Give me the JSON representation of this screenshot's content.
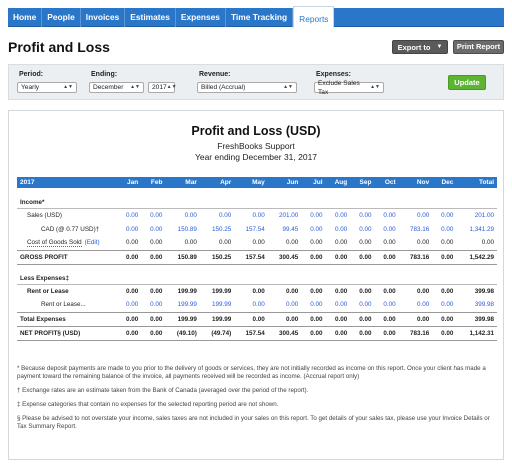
{
  "nav": {
    "tabs": [
      "Home",
      "People",
      "Invoices",
      "Estimates",
      "Expenses",
      "Time Tracking",
      "Reports"
    ],
    "active": "Reports"
  },
  "header": {
    "title": "Profit and Loss",
    "export_label": "Export to",
    "print_label": "Print Report"
  },
  "filters": {
    "period_label": "Period:",
    "period_value": "Yearly",
    "ending_label": "Ending:",
    "ending_month": "December",
    "ending_year": "2017",
    "revenue_label": "Revenue:",
    "revenue_value": "Billed (Accrual)",
    "expenses_label": "Expenses:",
    "expenses_value": "Exclude Sales Tax",
    "update_label": "Update"
  },
  "report": {
    "title": "Profit and Loss (USD)",
    "company": "FreshBooks Support",
    "period": "Year ending December 31, 2017",
    "columns": [
      "2017",
      "Jan",
      "Feb",
      "Mar",
      "Apr",
      "May",
      "Jun",
      "Jul",
      "Aug",
      "Sep",
      "Oct",
      "Nov",
      "Dec",
      "Total"
    ],
    "income_label": "Income*",
    "income_rows": [
      {
        "label": "Sales (USD)",
        "values": [
          "0.00",
          "0.00",
          "0.00",
          "0.00",
          "0.00",
          "201.00",
          "0.00",
          "0.00",
          "0.00",
          "0.00",
          "0.00",
          "0.00",
          "201.00"
        ]
      },
      {
        "label": "CAD (@ 0.77 USD)†",
        "values": [
          "0.00",
          "0.00",
          "150.89",
          "150.25",
          "157.54",
          "99.45",
          "0.00",
          "0.00",
          "0.00",
          "0.00",
          "783.16",
          "0.00",
          "1,341.29"
        ]
      }
    ],
    "cogs": {
      "label": "Cost of Goods Sold",
      "edit": "(Edit)",
      "values": [
        "0.00",
        "0.00",
        "0.00",
        "0.00",
        "0.00",
        "0.00",
        "0.00",
        "0.00",
        "0.00",
        "0.00",
        "0.00",
        "0.00",
        "0.00"
      ]
    },
    "gross": {
      "label": "GROSS PROFIT",
      "values": [
        "0.00",
        "0.00",
        "150.89",
        "150.25",
        "157.54",
        "300.45",
        "0.00",
        "0.00",
        "0.00",
        "0.00",
        "783.16",
        "0.00",
        "1,542.29"
      ]
    },
    "expenses_label": "Less Expenses‡",
    "expense_rows": [
      {
        "label": "Rent or Lease",
        "values": [
          "0.00",
          "0.00",
          "199.99",
          "199.99",
          "0.00",
          "0.00",
          "0.00",
          "0.00",
          "0.00",
          "0.00",
          "0.00",
          "0.00",
          "399.98"
        ]
      },
      {
        "label": "Rent or Lease...",
        "values": [
          "0.00",
          "0.00",
          "199.99",
          "199.99",
          "0.00",
          "0.00",
          "0.00",
          "0.00",
          "0.00",
          "0.00",
          "0.00",
          "0.00",
          "399.98"
        ]
      }
    ],
    "total_expenses": {
      "label": "Total Expenses",
      "values": [
        "0.00",
        "0.00",
        "199.99",
        "199.99",
        "0.00",
        "0.00",
        "0.00",
        "0.00",
        "0.00",
        "0.00",
        "0.00",
        "0.00",
        "399.98"
      ]
    },
    "net": {
      "label": "NET PROFIT§ (USD)",
      "values": [
        "0.00",
        "0.00",
        "(49.10)",
        "(49.74)",
        "157.54",
        "300.45",
        "0.00",
        "0.00",
        "0.00",
        "0.00",
        "783.16",
        "0.00",
        "1,142.31"
      ]
    },
    "notes": [
      "* Because deposit payments are made to you prior to the delivery of goods or services, they are not initially recorded as income on this report. Once your client has made a payment toward the remaining balance of the invoice, all payments received will be recorded as income. (Accrual report only)",
      "† Exchange rates are an estimate taken from the Bank of Canada (averaged over the period of the report).",
      "‡ Expense categories that contain no expenses for the selected reporting period are not shown.",
      "§ Please be advised to not overstate your income, sales taxes are not included in your sales on this report. To get details of your sales tax, please use your Invoice Details or Tax Summary Report."
    ]
  }
}
